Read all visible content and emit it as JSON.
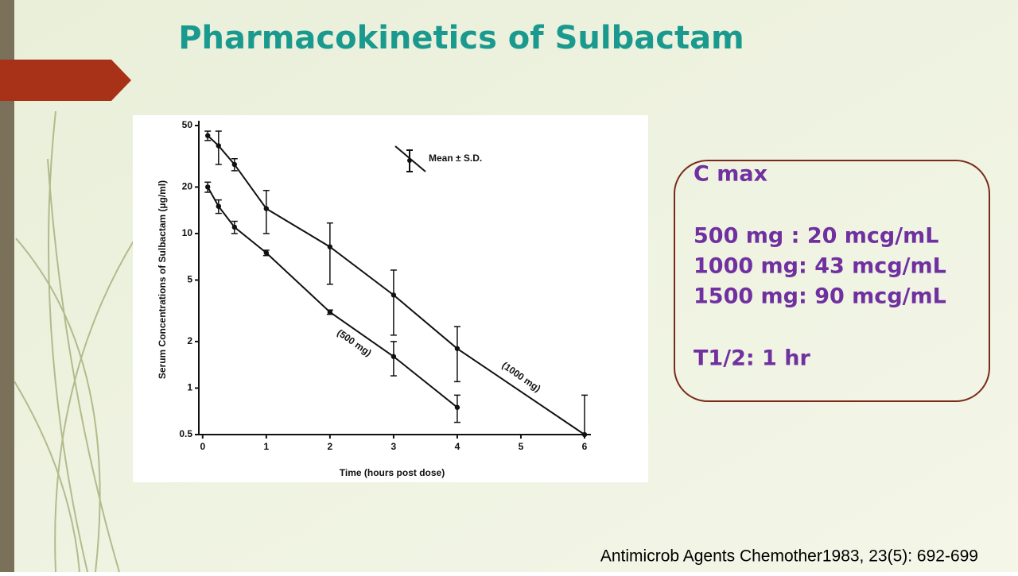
{
  "title": "Pharmacokinetics of Sulbactam",
  "chart_data": {
    "type": "line",
    "x_label": "Time (hours post dose)",
    "y_label": "Serum Concentrations of Sulbactam (µg/ml)",
    "legend_label": "Mean ± S.D.",
    "xlim": [
      -0.06,
      6.1
    ],
    "xticks": [
      0,
      1,
      2,
      3,
      4,
      5,
      6
    ],
    "ylim": [
      0.5,
      50
    ],
    "yticks": [
      0.5,
      1,
      2,
      5,
      10,
      20,
      50
    ],
    "log_scale": true,
    "series": [
      {
        "name": "(1000 mg)",
        "color": "#111111",
        "x": [
          0.08,
          0.25,
          0.5,
          1,
          2,
          3,
          4,
          6
        ],
        "values": [
          43,
          37,
          28,
          14.5,
          8.2,
          4,
          1.8,
          0.5
        ],
        "errors": [
          3,
          9,
          2.5,
          4.5,
          3.5,
          1.8,
          0.7,
          0.4
        ]
      },
      {
        "name": "(500 mg)",
        "color": "#111111",
        "x": [
          0.08,
          0.25,
          0.5,
          1,
          2,
          3,
          4
        ],
        "values": [
          20,
          15,
          11,
          7.5,
          3.1,
          1.6,
          0.75
        ],
        "errors": [
          1.5,
          1.5,
          1,
          0.3,
          0.1,
          0.4,
          0.15
        ]
      }
    ]
  },
  "panel": {
    "heading": "C max",
    "lines": [
      "500 mg : 20 mcg/mL",
      "1000 mg: 43 mcg/mL",
      "1500 mg: 90 mcg/mL"
    ],
    "half_life": "T1/2: 1 hr"
  },
  "citation": "Antimicrob Agents Chemother1983, 23(5): 692-699"
}
